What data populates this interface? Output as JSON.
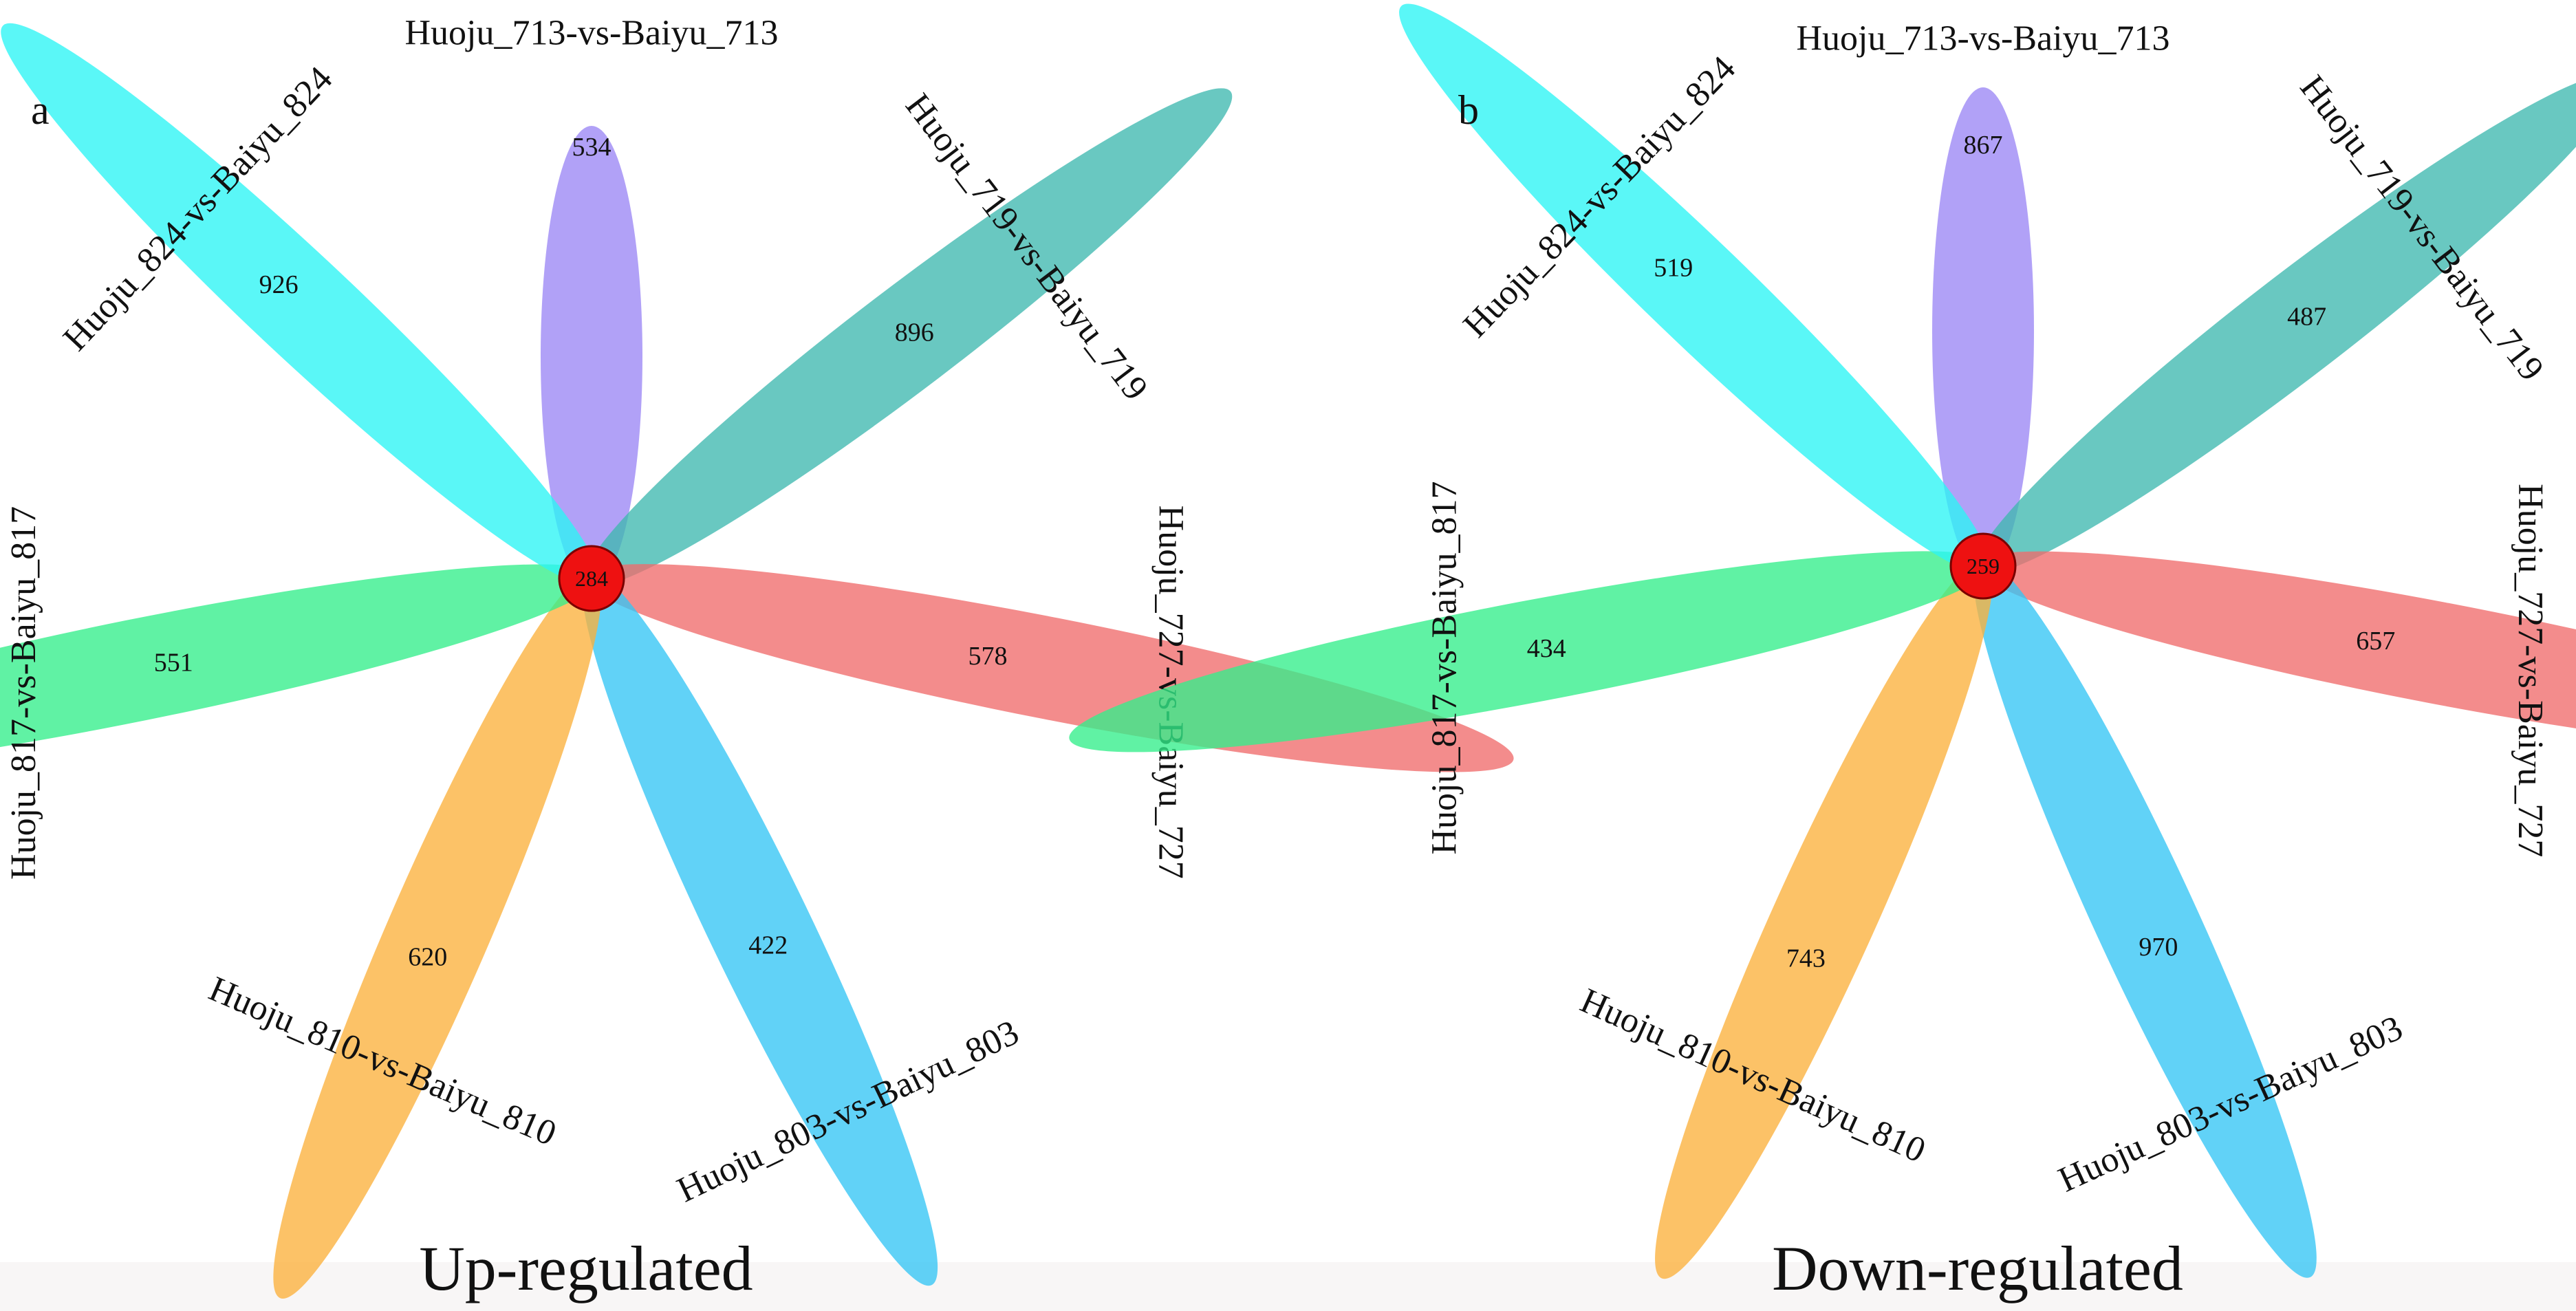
{
  "panels": [
    {
      "letter": "a",
      "caption": "Up-regulated",
      "core_count": "284",
      "petals": [
        {
          "label": "Huoju_713-vs-Baiyu_713",
          "count": "534",
          "color": "#9b86f5"
        },
        {
          "label": "Huoju_719-vs-Baiyu_719",
          "count": "896",
          "color": "#3fb8b0"
        },
        {
          "label": "Huoju_727-vs-Baiyu_727",
          "count": "578",
          "color": "#f06b6b"
        },
        {
          "label": "Huoju_803-vs-Baiyu_803",
          "count": "422",
          "color": "#35c5f5"
        },
        {
          "label": "Huoju_810-vs-Baiyu_810",
          "count": "620",
          "color": "#fbb13c"
        },
        {
          "label": "Huoju_817-vs-Baiyu_817",
          "count": "551",
          "color": "#33ee8a"
        },
        {
          "label": "Huoju_824-vs-Baiyu_824",
          "count": "926",
          "color": "#2cf5f5"
        }
      ]
    },
    {
      "letter": "b",
      "caption": "Down-regulated",
      "core_count": "259",
      "petals": [
        {
          "label": "Huoju_713-vs-Baiyu_713",
          "count": "867",
          "color": "#9b86f5"
        },
        {
          "label": "Huoju_719-vs-Baiyu_719",
          "count": "487",
          "color": "#3fb8b0"
        },
        {
          "label": "Huoju_727-vs-Baiyu_727",
          "count": "657",
          "color": "#f06b6b"
        },
        {
          "label": "Huoju_803-vs-Baiyu_803",
          "count": "970",
          "color": "#35c5f5"
        },
        {
          "label": "Huoju_810-vs-Baiyu_810",
          "count": "743",
          "color": "#fbb13c"
        },
        {
          "label": "Huoju_817-vs-Baiyu_817",
          "count": "434",
          "color": "#33ee8a"
        },
        {
          "label": "Huoju_824-vs-Baiyu_824",
          "count": "519",
          "color": "#2cf5f5"
        }
      ]
    }
  ],
  "core_color": "#ee1111"
}
